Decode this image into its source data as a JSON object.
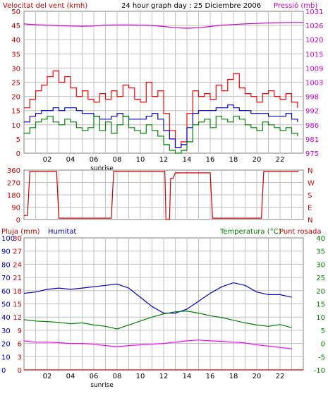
{
  "header": {
    "wind_title": "Velocitat del vent (kmh)",
    "graph_title": "24 hour graph day : 25 Diciembre 2006",
    "pressure_title": "Pressió (mb)"
  },
  "colors": {
    "wind_speed": "#ff0000",
    "wind_gust_dark": "#008000",
    "humidity": "#0000cc",
    "pressure": "#cc00cc",
    "temperature": "#008000",
    "dewpoint": "#ff00ff",
    "rain": "#cc0000",
    "grid": "#c0c0c0"
  },
  "chart_data": [
    {
      "id": "wind_pressure",
      "type": "line",
      "x_tick_labels": [
        "02",
        "04",
        "06",
        "08",
        "10",
        "12",
        "14",
        "16",
        "18",
        "20",
        "22"
      ],
      "x_tick_hours": [
        2,
        4,
        6,
        8,
        10,
        12,
        14,
        16,
        18,
        20,
        22
      ],
      "x_annotation": "sunrise",
      "x_annotation_hour": 6.7,
      "xlim": [
        0,
        24
      ],
      "left_axis": {
        "label": "Velocitat del vent (kmh)",
        "ylim": [
          0,
          50
        ],
        "ticks": [
          "0",
          "5",
          "10",
          "15",
          "20",
          "25",
          "30",
          "35",
          "40",
          "45",
          "50"
        ]
      },
      "right_axis": {
        "label": "Pressió (mb)",
        "ylim": [
          975,
          1031
        ],
        "ticks": [
          "975",
          "981",
          "986",
          "992",
          "998",
          "1003",
          "1009",
          "1015",
          "1020",
          "1026",
          "1031"
        ]
      },
      "series": [
        {
          "axis": "right",
          "color": "#cc00cc",
          "x": [
            0,
            1,
            2,
            3,
            4,
            5,
            6,
            7,
            8,
            9,
            10,
            11,
            12,
            13,
            14,
            15,
            16,
            17,
            18,
            19,
            20,
            21,
            22,
            23,
            24
          ],
          "y": [
            1026.0,
            1025.7,
            1025.5,
            1025.3,
            1025.2,
            1025.1,
            1025.2,
            1025.5,
            1025.6,
            1025.6,
            1025.5,
            1025.4,
            1025.0,
            1024.5,
            1024.3,
            1024.5,
            1025.0,
            1025.5,
            1025.8,
            1026.0,
            1026.2,
            1026.4,
            1026.5,
            1026.6,
            1026.6
          ]
        },
        {
          "axis": "left",
          "color": "#ff0000",
          "x": [
            0,
            0.5,
            1,
            1.5,
            2,
            2.5,
            3,
            3.5,
            4,
            4.5,
            5,
            5.5,
            6,
            6.5,
            7,
            7.5,
            8,
            8.5,
            9,
            9.5,
            10,
            10.5,
            11,
            11.5,
            12,
            12.5,
            13,
            13.5,
            14,
            14.5,
            15,
            15.5,
            16,
            16.5,
            17,
            17.5,
            18,
            18.5,
            19,
            19.5,
            20,
            20.5,
            21,
            21.5,
            22,
            22.5,
            23,
            23.5
          ],
          "y": [
            16,
            19,
            22,
            24,
            27,
            29,
            25,
            27,
            23,
            20,
            22,
            19,
            18,
            21,
            19,
            22,
            20,
            24,
            23,
            19,
            18,
            25,
            20,
            22,
            14,
            8,
            2,
            4,
            14,
            22,
            20,
            21,
            19,
            24,
            22,
            26,
            28,
            23,
            21,
            20,
            18,
            21,
            22,
            20,
            19,
            21,
            18,
            16
          ]
        },
        {
          "axis": "left",
          "color": "#0000cc",
          "x": [
            0,
            0.5,
            1,
            1.5,
            2,
            2.5,
            3,
            3.5,
            4,
            4.5,
            5,
            5.5,
            6,
            6.5,
            7,
            7.5,
            8,
            8.5,
            9,
            9.5,
            10,
            10.5,
            11,
            11.5,
            12,
            12.5,
            13,
            13.5,
            14,
            14.5,
            15,
            15.5,
            16,
            16.5,
            17,
            17.5,
            18,
            18.5,
            19,
            19.5,
            20,
            20.5,
            21,
            21.5,
            22,
            22.5,
            23,
            23.5
          ],
          "y": [
            11,
            13,
            14,
            15,
            15,
            16,
            15,
            16,
            16,
            15,
            14,
            14,
            13,
            12,
            12,
            13,
            14,
            13,
            12,
            12,
            12,
            13,
            14,
            12,
            8,
            5,
            2,
            3,
            9,
            14,
            15,
            15,
            15,
            16,
            16,
            17,
            16,
            15,
            15,
            14,
            14,
            14,
            13,
            13,
            13,
            14,
            12,
            11
          ]
        },
        {
          "axis": "left",
          "color": "#008000",
          "x": [
            0,
            0.5,
            1,
            1.5,
            2,
            2.5,
            3,
            3.5,
            4,
            4.5,
            5,
            5.5,
            6,
            6.5,
            7,
            7.5,
            8,
            8.5,
            9,
            9.5,
            10,
            10.5,
            11,
            11.5,
            12,
            12.5,
            13,
            13.5,
            14,
            14.5,
            15,
            15.5,
            16,
            16.5,
            17,
            17.5,
            18,
            18.5,
            19,
            19.5,
            20,
            20.5,
            21,
            21.5,
            22,
            22.5,
            23,
            23.5
          ],
          "y": [
            7,
            9,
            11,
            12,
            13,
            11,
            10,
            12,
            11,
            9,
            8,
            9,
            13,
            8,
            11,
            7,
            10,
            13,
            9,
            8,
            7,
            10,
            8,
            6,
            3,
            1,
            0,
            1,
            4,
            10,
            11,
            12,
            9,
            13,
            12,
            11,
            13,
            12,
            10,
            9,
            8,
            11,
            10,
            9,
            8,
            9,
            7,
            6
          ]
        }
      ]
    },
    {
      "id": "wind_direction",
      "type": "line",
      "xlim": [
        0,
        24
      ],
      "left_axis": {
        "ylim": [
          0,
          360
        ],
        "ticks": [
          "0",
          "90",
          "180",
          "270",
          "360"
        ]
      },
      "right_axis": {
        "ticks": [
          "N",
          "E",
          "S",
          "W",
          "N"
        ]
      },
      "series": [
        {
          "color": "#cc0000",
          "x": [
            0,
            0.3,
            0.5,
            2.8,
            3.0,
            7.5,
            7.7,
            12.1,
            12.2,
            12.5,
            12.6,
            12.8,
            13.0,
            16.0,
            16.2,
            20.4,
            20.6,
            23.6
          ],
          "y": [
            30,
            30,
            350,
            350,
            10,
            10,
            350,
            350,
            0,
            0,
            300,
            300,
            340,
            340,
            10,
            10,
            350,
            350
          ]
        }
      ]
    },
    {
      "id": "humidity_temperature_rain",
      "type": "line",
      "x_tick_labels": [
        "02",
        "04",
        "06",
        "08",
        "10",
        "12",
        "14",
        "16",
        "18",
        "20",
        "22"
      ],
      "x_tick_hours": [
        2,
        4,
        6,
        8,
        10,
        12,
        14,
        16,
        18,
        20,
        22
      ],
      "x_annotation": "sunrise",
      "x_annotation_hour": 6.7,
      "xlim": [
        0,
        24
      ],
      "rain_axis": {
        "label": "Pluja (mm)",
        "ylim": [
          0,
          100
        ],
        "ticks": [
          "0",
          "10",
          "20",
          "30",
          "40",
          "50",
          "60",
          "70",
          "80",
          "90",
          "100"
        ]
      },
      "humidity_axis": {
        "label": "Humitat",
        "ylim": [
          0,
          100
        ],
        "ticks": [
          "0",
          "3",
          "6",
          "9",
          "12",
          "15",
          "18",
          "21",
          "24",
          "27",
          "30"
        ]
      },
      "temp_axis": {
        "label": "Temperatura (°C)",
        "label2": "Punt rosada",
        "ylim": [
          -10,
          40
        ],
        "ticks": [
          "-10",
          "-5",
          "0",
          "5",
          "10",
          "15",
          "20",
          "25",
          "30",
          "35",
          "40"
        ]
      },
      "series": [
        {
          "axis": "humidity",
          "color": "#0000cc",
          "x": [
            0,
            1,
            2,
            3,
            4,
            5,
            6,
            7,
            8,
            9,
            10,
            11,
            12,
            13,
            14,
            15,
            16,
            17,
            18,
            19,
            20,
            21,
            22,
            23
          ],
          "y": [
            58,
            59,
            61,
            62,
            61,
            62,
            63,
            64,
            65,
            62,
            55,
            48,
            43,
            43,
            46,
            52,
            58,
            63,
            66,
            64,
            59,
            57,
            57,
            55
          ]
        },
        {
          "axis": "temp",
          "color": "#008000",
          "x": [
            0,
            1,
            2,
            3,
            4,
            5,
            6,
            7,
            8,
            9,
            10,
            11,
            12,
            13,
            14,
            15,
            16,
            17,
            18,
            19,
            20,
            21,
            22,
            23
          ],
          "y": [
            9.0,
            8.5,
            8.3,
            8.0,
            7.5,
            7.8,
            7.0,
            6.5,
            5.5,
            7.0,
            8.5,
            10.0,
            11.2,
            12.0,
            12.3,
            11.5,
            10.5,
            9.8,
            8.8,
            7.8,
            7.0,
            6.5,
            7.2,
            6.0
          ]
        },
        {
          "axis": "temp",
          "color": "#ff00ff",
          "x": [
            0,
            1,
            2,
            3,
            4,
            5,
            6,
            7,
            8,
            9,
            10,
            11,
            12,
            13,
            14,
            15,
            16,
            17,
            18,
            19,
            20,
            21,
            22,
            23
          ],
          "y": [
            1.0,
            0.5,
            0.5,
            0.3,
            0.0,
            0.0,
            -0.3,
            -0.8,
            -1.2,
            -0.8,
            -0.5,
            -0.3,
            0.0,
            0.5,
            1.0,
            1.3,
            1.0,
            0.8,
            0.5,
            0.2,
            -0.5,
            -1.0,
            -1.5,
            -2.0
          ]
        },
        {
          "axis": "rain",
          "color": "#cc0000",
          "x": [
            0,
            24
          ],
          "y": [
            0,
            0
          ]
        }
      ]
    }
  ]
}
